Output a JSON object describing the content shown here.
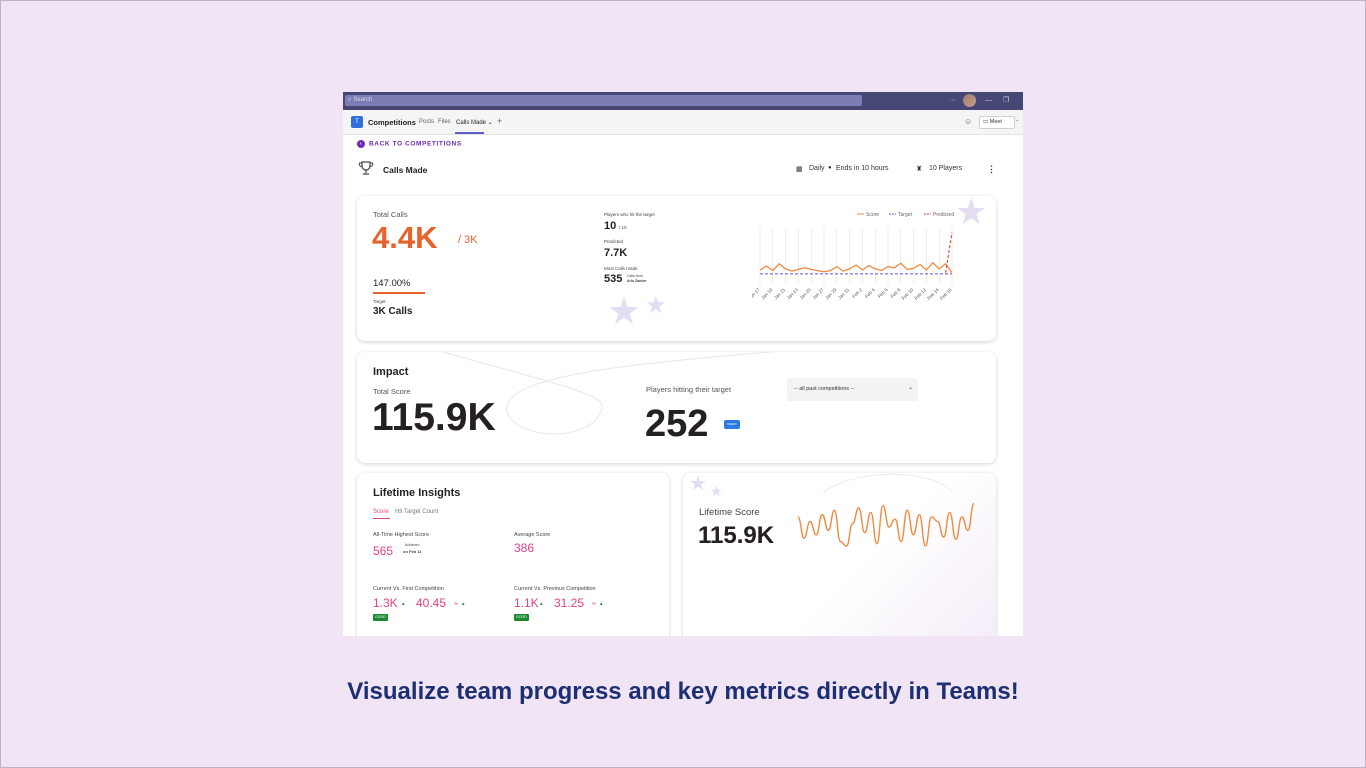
{
  "window": {
    "search_placeholder": "Search",
    "ctl_more": "···",
    "ctl_min": "—",
    "ctl_max": "❐"
  },
  "tabs": {
    "team_icon": "T",
    "title": "Competitions",
    "items": [
      "Posts",
      "Files",
      "Calls Made ⌄"
    ],
    "add": "+",
    "meet_label": "Meet"
  },
  "nav": {
    "back_label": "BACK TO COMPETITIONS",
    "back_icon": "‹"
  },
  "header": {
    "title": "Calls Made",
    "schedule": "Daily",
    "ends": "Ends in 10 hours",
    "players": "10 Players",
    "more": "⋮"
  },
  "total_calls": {
    "label": "Total Calls",
    "value": "4.4K",
    "target_suffix": "/ 3K",
    "percent": "147.00%",
    "progress": 1.0,
    "target_label": "Target",
    "target_value": "3K Calls",
    "players_hit_label": "Players who hit the target",
    "players_hit_value": "10",
    "players_hit_total": "/ 10",
    "predicted_label": "Predicted",
    "predicted_value": "7.7K",
    "most_calls_label": "Most Calls made",
    "most_calls_value": "535",
    "most_calls_from": "Calls from",
    "most_calls_name": "Arlo Zander"
  },
  "chart_data": {
    "type": "line",
    "categories": [
      "Jan 17",
      "Jan 19",
      "Jan 21",
      "Jan 23",
      "Jan 25",
      "Jan 27",
      "Jan 29",
      "Jan 31",
      "Feb 2",
      "Feb 4",
      "Feb 6",
      "Feb 8",
      "Feb 10",
      "Feb 12",
      "Feb 14",
      "Feb 16"
    ],
    "legend": [
      "Score",
      "Target",
      "Predicted"
    ],
    "legend_position": "top-right",
    "series_colors": {
      "Score": "#f08a3e",
      "Target": "#6b4ce0",
      "Predicted": "#e8453c"
    },
    "x_index": [
      0,
      0.5,
      1,
      1.5,
      2,
      2.5,
      3,
      3.5,
      4,
      4.5,
      5,
      5.5,
      6,
      6.5,
      7,
      7.5,
      8,
      8.5,
      9,
      9.5,
      10,
      10.5,
      11,
      11.5,
      12,
      12.5,
      13,
      13.5,
      14,
      14.5,
      15
    ],
    "score": [
      25,
      32,
      24,
      36,
      27,
      23,
      26,
      29,
      26,
      24,
      22,
      24,
      31,
      23,
      27,
      34,
      25,
      33,
      27,
      24,
      31,
      29,
      37,
      26,
      28,
      35,
      25,
      38,
      27,
      36,
      20
    ],
    "target": [
      18,
      18,
      18,
      18,
      18,
      18,
      18,
      18,
      18,
      18,
      18,
      18,
      18,
      18,
      18,
      18,
      18,
      18,
      18,
      18,
      18,
      18,
      18,
      18,
      18,
      18,
      18,
      18,
      18,
      18,
      18
    ],
    "predicted_x": [
      14.5,
      15
    ],
    "predicted": [
      20,
      92
    ],
    "ylim": [
      0,
      100
    ],
    "grid": true
  },
  "impact": {
    "title": "Impact",
    "score_label": "Total Score",
    "score_value": "115.9K",
    "players_label": "Players hitting their target",
    "players_value": "252",
    "badge": "DEMO",
    "select_value": "-- all past competitions --"
  },
  "insights": {
    "title": "Lifetime Insights",
    "tab_score": "Score",
    "tab_hit": "Hit Target Count",
    "highest_label": "All-Time Highest Score",
    "highest_value": "565",
    "achieved_label": "Achieved",
    "achieved_date": "on Feb 11",
    "avg_label": "Average Score",
    "avg_value": "386",
    "cvf_label": "Current Vs. First Competition",
    "cvf_value": "1.3K",
    "cvf_pct": "40.45",
    "cvf_badge": "GOOD",
    "cvp_label": "Current Vs. Previous Competition",
    "cvp_value": "1.1K",
    "cvp_pct": "31.25",
    "cvp_badge": "GOOD",
    "pct_sign": "%",
    "up_arrow": "▲"
  },
  "lifetime": {
    "label": "Lifetime Score",
    "value": "115.9K",
    "spark": [
      34,
      15,
      30,
      18,
      36,
      22,
      40,
      12,
      8,
      28,
      42,
      20,
      38,
      10,
      44,
      25,
      32,
      12,
      40,
      18,
      36,
      8,
      34,
      30,
      16,
      38,
      14,
      34,
      22,
      46
    ]
  },
  "caption": "Visualize team progress and key metrics directly in Teams!",
  "icons": [
    "search-icon",
    "trophy-icon",
    "calendar-icon",
    "players-icon",
    "video-icon",
    "chat-icon"
  ]
}
